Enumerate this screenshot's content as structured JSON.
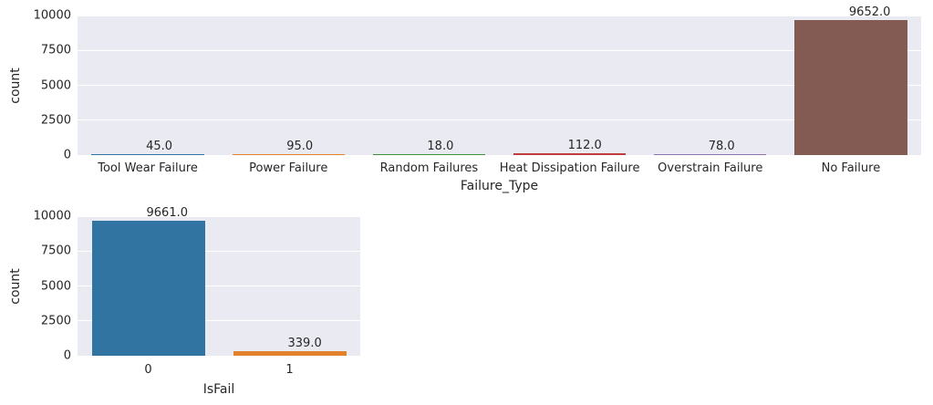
{
  "style": {
    "plot_background": "#eaeaf2",
    "grid_color": "#ffffff",
    "text_color": "#262626"
  },
  "chart_data": [
    {
      "type": "bar",
      "title": "",
      "xlabel": "Failure_Type",
      "ylabel": "count",
      "categories": [
        "Tool Wear Failure",
        "Power Failure",
        "Random Failures",
        "Heat Dissipation Failure",
        "Overstrain Failure",
        "No Failure"
      ],
      "values": [
        45.0,
        95.0,
        18.0,
        112.0,
        78.0,
        9652.0
      ],
      "bar_labels": [
        "45.0",
        "95.0",
        "18.0",
        "112.0",
        "78.0",
        "9652.0"
      ],
      "bar_colors": [
        "#3274a1",
        "#e1812c",
        "#3a923a",
        "#c03d3e",
        "#9372b2",
        "#845b53"
      ],
      "ylim": [
        0,
        10000
      ],
      "yticks": [
        0,
        2500,
        5000,
        7500,
        10000
      ],
      "ytick_labels": [
        "0",
        "2500",
        "5000",
        "7500",
        "10000"
      ],
      "grid": true,
      "legend": null,
      "bar_width_fraction": 0.8
    },
    {
      "type": "bar",
      "title": "",
      "xlabel": "IsFail",
      "ylabel": "count",
      "categories": [
        "0",
        "1"
      ],
      "values": [
        9661.0,
        339.0
      ],
      "bar_labels": [
        "9661.0",
        "339.0"
      ],
      "bar_colors": [
        "#3274a1",
        "#e1812c"
      ],
      "ylim": [
        0,
        10000
      ],
      "yticks": [
        0,
        2500,
        5000,
        7500,
        10000
      ],
      "ytick_labels": [
        "0",
        "2500",
        "5000",
        "7500",
        "10000"
      ],
      "grid": true,
      "legend": null,
      "bar_width_fraction": 0.8
    }
  ]
}
